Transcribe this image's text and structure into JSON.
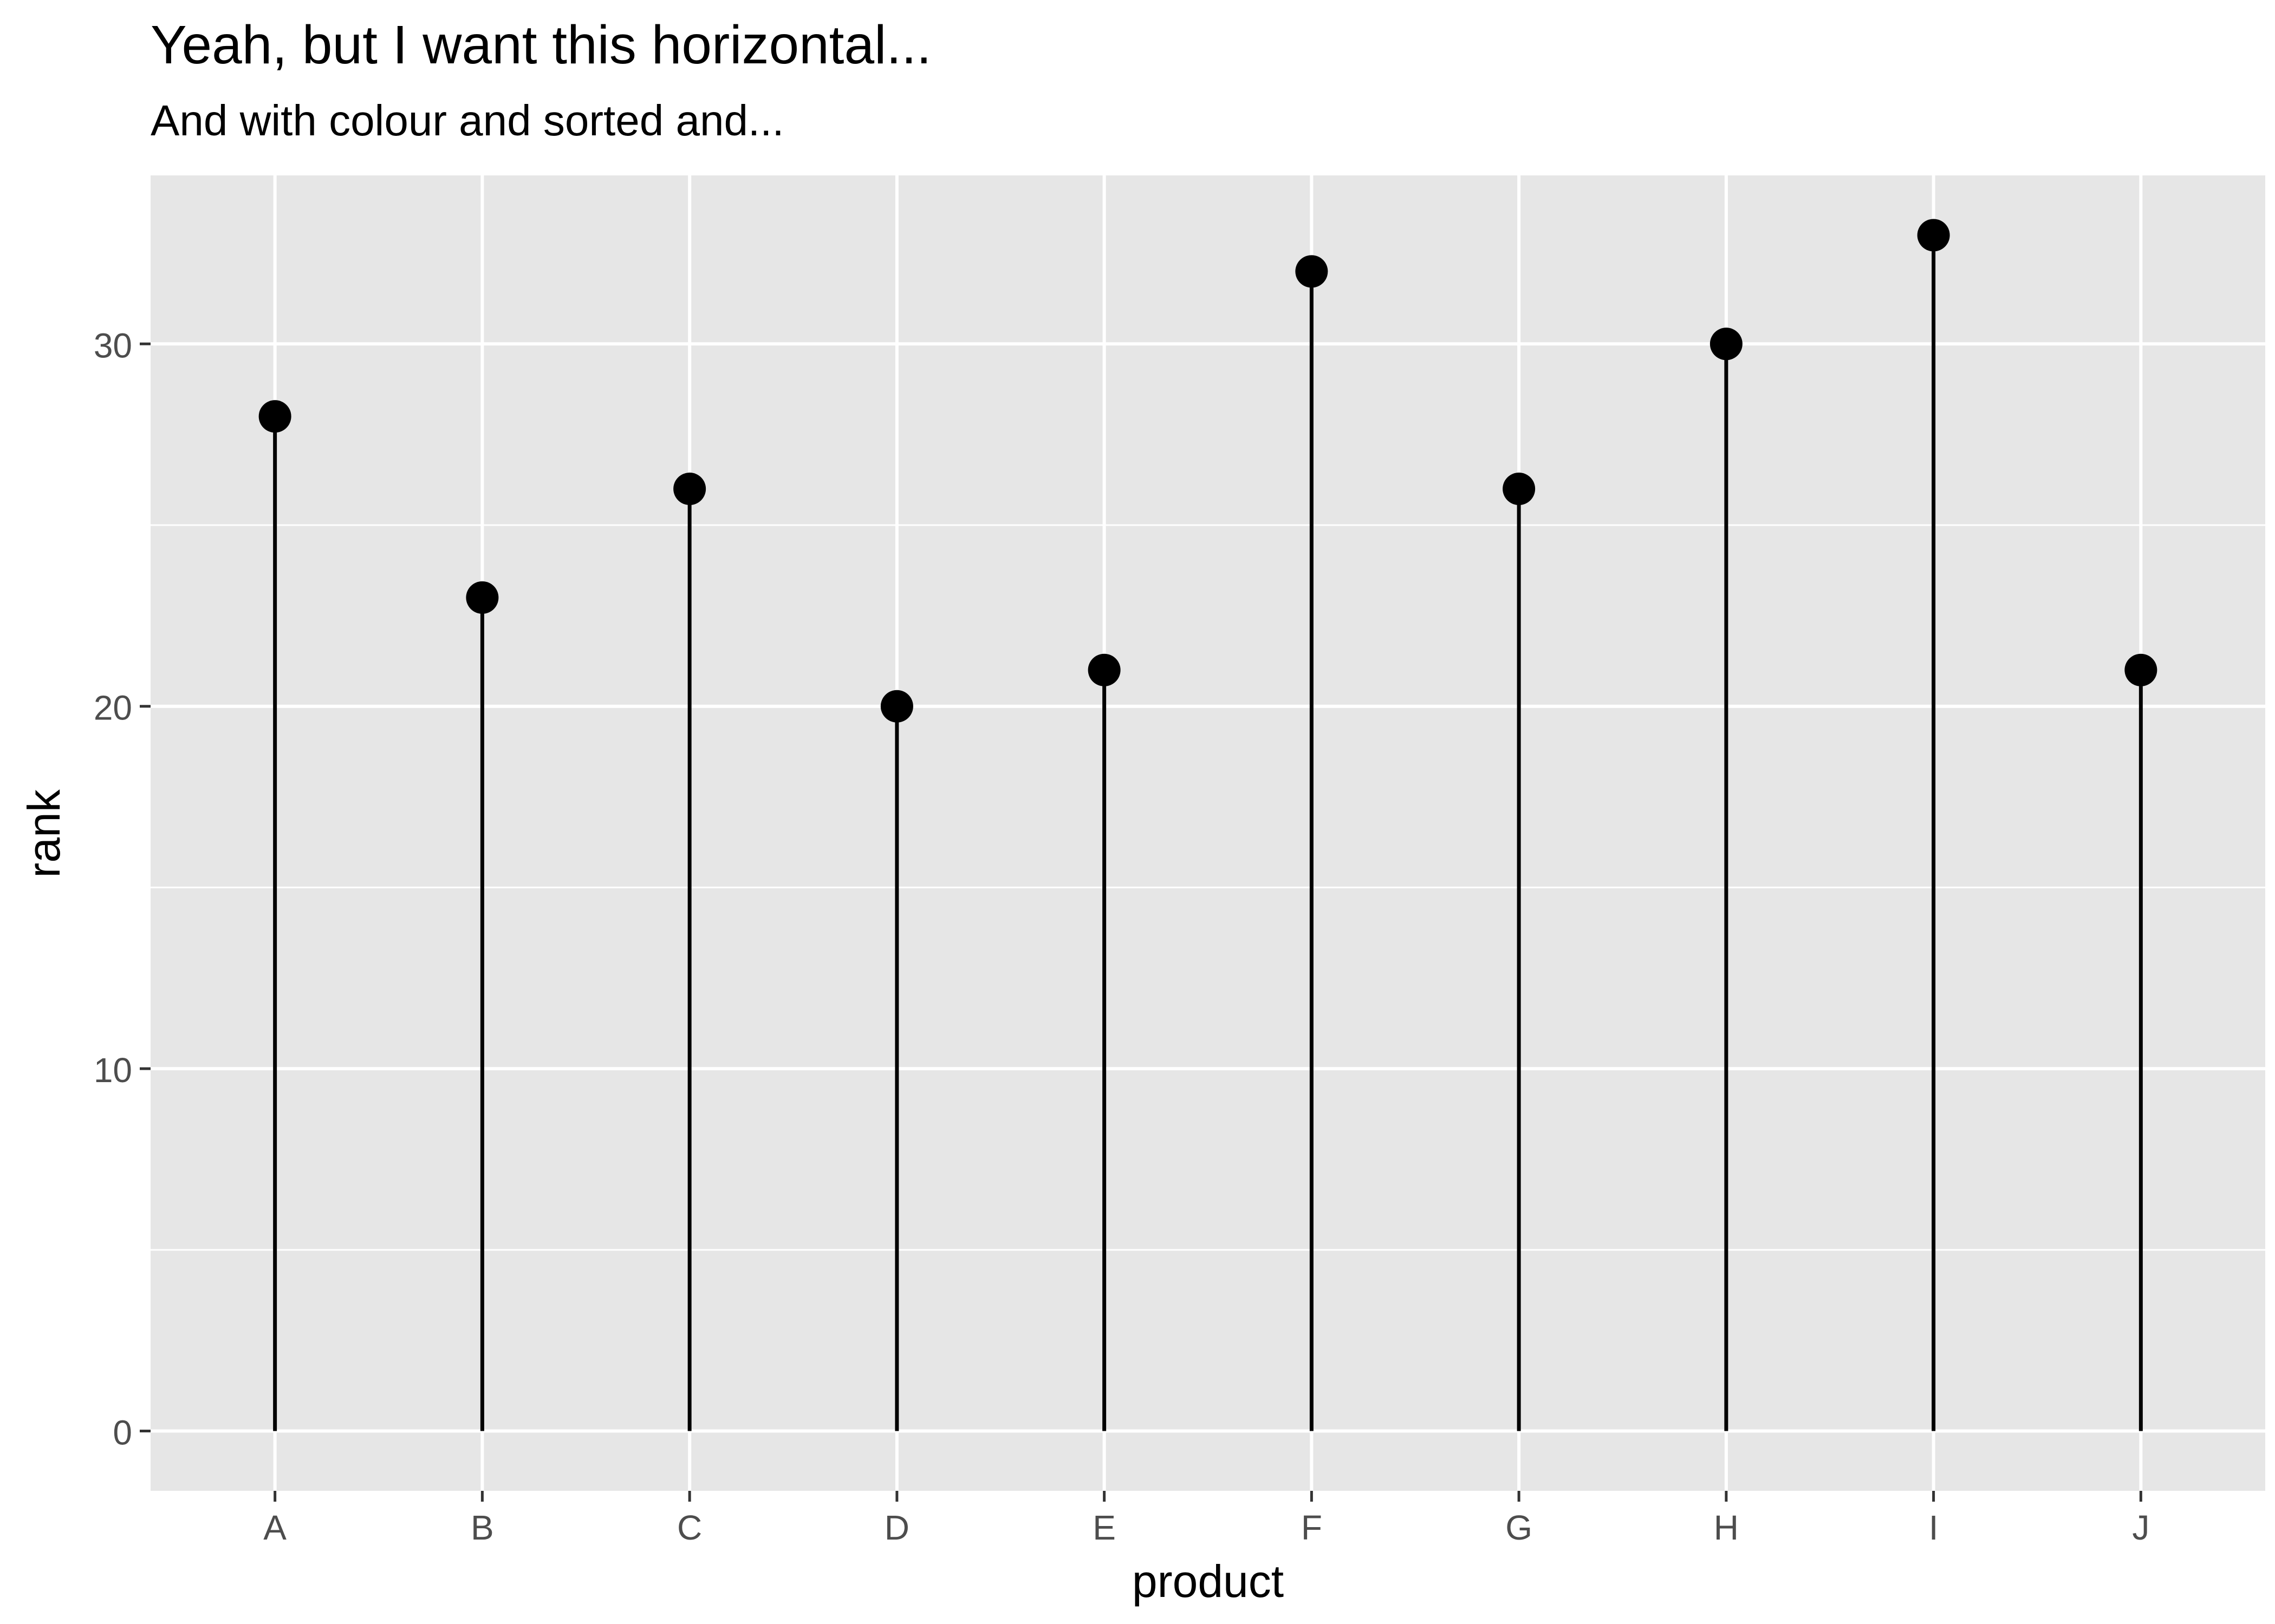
{
  "chart_data": {
    "type": "lollipop",
    "title": "Yeah, but I want this horizontal...",
    "subtitle": "And with colour and sorted and...",
    "xlabel": "product",
    "ylabel": "rank",
    "categories": [
      "A",
      "B",
      "C",
      "D",
      "E",
      "F",
      "G",
      "H",
      "I",
      "J"
    ],
    "values": [
      28,
      23,
      26,
      20,
      21,
      32,
      26,
      30,
      33,
      21
    ],
    "ylim": [
      -1.65,
      34.65
    ],
    "yticks": [
      0,
      10,
      20,
      30
    ],
    "ytick_labels": [
      "0",
      "10",
      "20",
      "30"
    ],
    "grid": true,
    "colors": {
      "panel": "#e6e6e6",
      "grid": "#ffffff",
      "mark": "#000000",
      "tick_text": "#4d4d4d",
      "tick_mark": "#333333"
    }
  }
}
